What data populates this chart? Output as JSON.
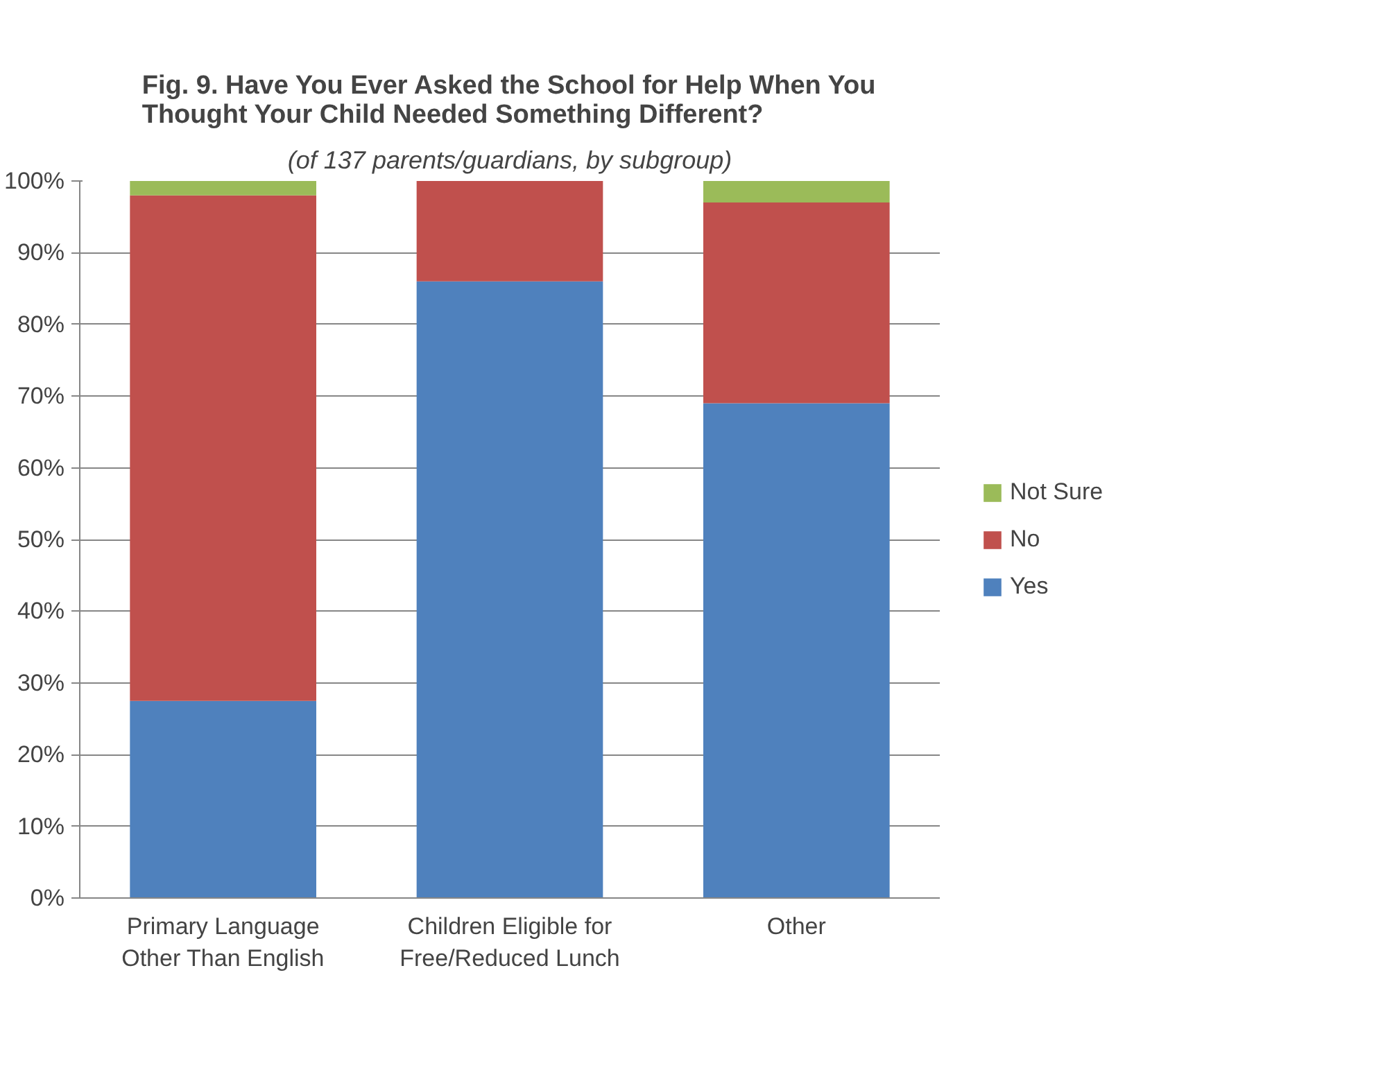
{
  "chart_data": {
    "type": "bar",
    "title": "Fig. 9. Have You Ever Asked the School for Help When You\nThought Your Child Needed Something Different?",
    "subtitle": "(of 137 parents/guardians, by subgroup)",
    "categories": [
      "Primary Language\nOther Than English",
      "Children Eligible for\nFree/Reduced Lunch",
      "Other"
    ],
    "stacked": true,
    "series": [
      {
        "name": "Yes",
        "color": "#4f81bd",
        "values": [
          27.5,
          86,
          69
        ]
      },
      {
        "name": "No",
        "color": "#c0504d",
        "values": [
          70.5,
          14,
          28
        ]
      },
      {
        "name": "Not Sure",
        "color": "#9bbb59",
        "values": [
          2,
          0,
          3
        ]
      }
    ],
    "ylim": [
      0,
      100
    ],
    "yticks": [
      {
        "value": 0,
        "label": "0%"
      },
      {
        "value": 10,
        "label": "10%"
      },
      {
        "value": 20,
        "label": "20%"
      },
      {
        "value": 30,
        "label": "30%"
      },
      {
        "value": 40,
        "label": "40%"
      },
      {
        "value": 50,
        "label": "50%"
      },
      {
        "value": 60,
        "label": "60%"
      },
      {
        "value": 70,
        "label": "70%"
      },
      {
        "value": 80,
        "label": "80%"
      },
      {
        "value": 90,
        "label": "90%"
      },
      {
        "value": 100,
        "label": "100%"
      }
    ],
    "grid": "y",
    "legend": "right"
  }
}
